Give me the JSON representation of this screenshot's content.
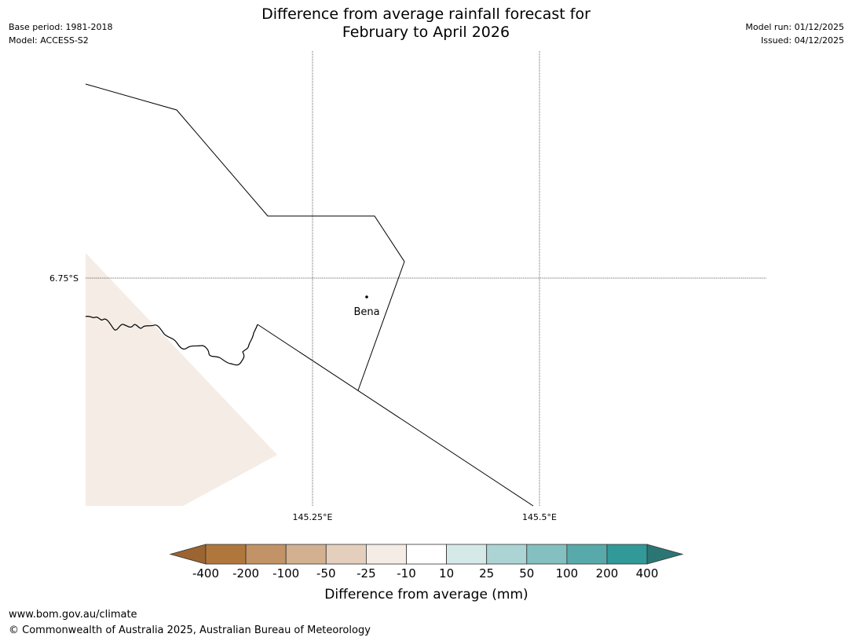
{
  "header": {
    "title_line1": "Difference from average rainfall forecast for",
    "title_line2": "February to April 2026",
    "base_period": "Base period: 1981-2018",
    "model": "Model: ACCESS-S2",
    "model_run": "Model run: 01/12/2025",
    "issued": "Issued: 04/12/2025"
  },
  "map": {
    "lat_labels": [
      "6.75°S"
    ],
    "lon_labels": [
      "145.25°E",
      "145.5°E"
    ],
    "place": {
      "name": "Bena"
    },
    "region_fill_category": "-25 to -10",
    "region_fill_color": "#f4ece5"
  },
  "colorbar": {
    "title": "Difference from average (mm)",
    "ticks": [
      "-400",
      "-200",
      "-100",
      "-50",
      "-25",
      "-10",
      "10",
      "25",
      "50",
      "100",
      "200",
      "400"
    ],
    "colors": [
      "#9b6431",
      "#b0773d",
      "#c29366",
      "#d3b090",
      "#e3cfbc",
      "#f4ece5",
      "#ffffff",
      "#d6e9e9",
      "#acd4d4",
      "#83c0bf",
      "#58aaaa",
      "#319998",
      "#2b7674"
    ]
  },
  "footer": {
    "url": "www.bom.gov.au/climate",
    "copyright": "© Commonwealth of Australia 2025, Australian Bureau of Meteorology"
  }
}
